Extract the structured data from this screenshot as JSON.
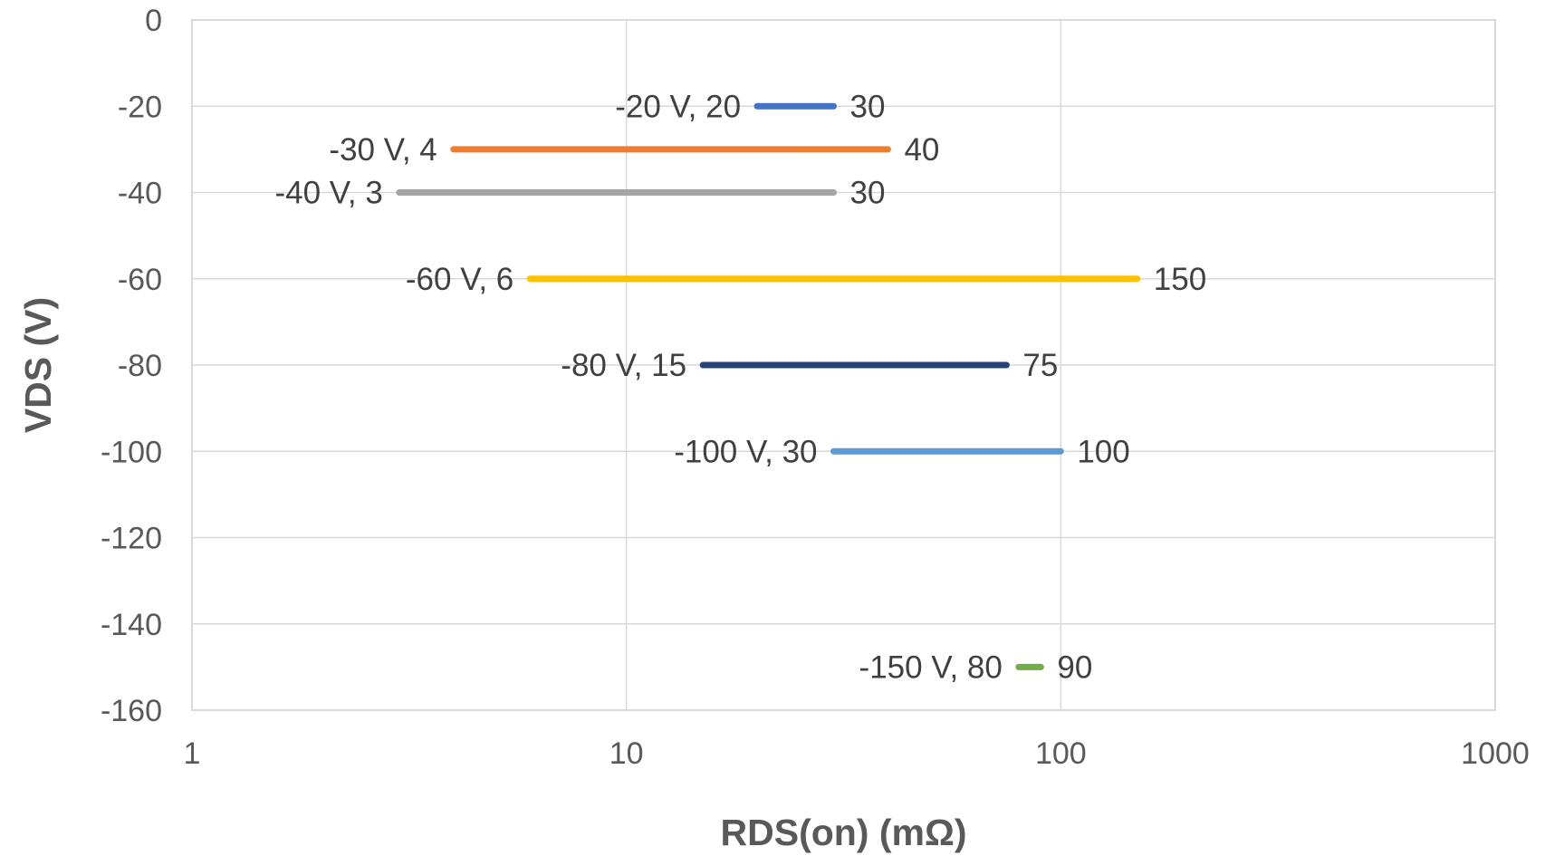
{
  "chart_data": {
    "type": "line",
    "xscale": "log",
    "xlim": [
      1,
      1000
    ],
    "ylim": [
      -160,
      0
    ],
    "xlabel": "RDS(on) (mΩ)",
    "ylabel": "VDS (V)",
    "xticks": [
      "1",
      "10",
      "100",
      "1000"
    ],
    "yticks": [
      "0",
      "-20",
      "-40",
      "-60",
      "-80",
      "-100",
      "-120",
      "-140",
      "-160"
    ],
    "grid": true,
    "series": [
      {
        "vds": -20,
        "rds_min": 20,
        "rds_max": 30,
        "label_left": "-20 V, 20",
        "label_right": "30",
        "color": "#4472C4"
      },
      {
        "vds": -30,
        "rds_min": 4,
        "rds_max": 40,
        "label_left": "-30 V, 4",
        "label_right": "40",
        "color": "#ED7D31"
      },
      {
        "vds": -40,
        "rds_min": 3,
        "rds_max": 30,
        "label_left": "-40 V, 3",
        "label_right": "30",
        "color": "#A5A5A5"
      },
      {
        "vds": -60,
        "rds_min": 6,
        "rds_max": 150,
        "label_left": "-60 V, 6",
        "label_right": "150",
        "color": "#FFC000"
      },
      {
        "vds": -80,
        "rds_min": 15,
        "rds_max": 75,
        "label_left": "-80 V, 15",
        "label_right": "75",
        "color": "#264478"
      },
      {
        "vds": -100,
        "rds_min": 30,
        "rds_max": 100,
        "label_left": "-100 V, 30",
        "label_right": "100",
        "color": "#5B9BD5"
      },
      {
        "vds": -150,
        "rds_min": 80,
        "rds_max": 90,
        "label_left": "-150 V, 80",
        "label_right": "90",
        "color": "#70AD47"
      }
    ]
  }
}
